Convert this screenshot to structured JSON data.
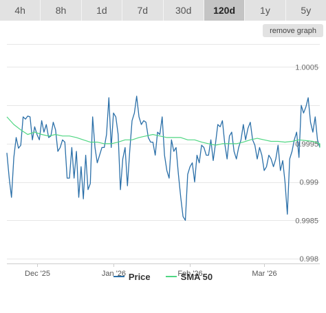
{
  "tabs": [
    {
      "label": "4h",
      "active": false
    },
    {
      "label": "8h",
      "active": false
    },
    {
      "label": "1d",
      "active": false
    },
    {
      "label": "7d",
      "active": false
    },
    {
      "label": "30d",
      "active": false
    },
    {
      "label": "120d",
      "active": true
    },
    {
      "label": "1y",
      "active": false
    },
    {
      "label": "5y",
      "active": false
    }
  ],
  "remove_graph_label": "remove graph",
  "legend": [
    {
      "label": "Price",
      "color": "#2a6fa8"
    },
    {
      "label": "SMA 50",
      "color": "#4fd682"
    }
  ],
  "chart_data": {
    "type": "line",
    "title": "",
    "xlabel": "",
    "ylabel": "",
    "ylim": [
      0.998,
      1.0008
    ],
    "yticks": [
      "0.998",
      "0.9985",
      "0.999",
      "0.9995",
      "1.0005"
    ],
    "xticks": [
      "Dec '25",
      "Jan '26",
      "Feb '26",
      "Mar '26"
    ],
    "grid": true,
    "legend_position": "bottom",
    "series": [
      {
        "name": "Price",
        "color": "#2a6fa8",
        "values": [
          0.99938,
          0.99905,
          0.9988,
          0.99932,
          0.99958,
          0.99944,
          0.99948,
          0.99985,
          0.99982,
          0.99986,
          0.99985,
          0.99955,
          0.99972,
          0.99962,
          0.99955,
          0.9998,
          0.99965,
          0.99975,
          0.99958,
          0.9996,
          0.99978,
          0.99968,
          0.9994,
          0.99945,
          0.99955,
          0.99952,
          0.99905,
          0.99905,
          0.99945,
          0.99905,
          0.9994,
          0.9988,
          0.9992,
          0.99878,
          0.99935,
          0.9989,
          0.99898,
          0.99985,
          0.99945,
          0.99925,
          0.99935,
          0.99945,
          0.99945,
          0.99962,
          1.0001,
          0.99945,
          0.9999,
          0.99985,
          0.99962,
          0.9989,
          0.9993,
          0.99945,
          0.99895,
          0.9994,
          0.9998,
          0.9999,
          1.00012,
          0.99985,
          0.99975,
          0.9998,
          0.99978,
          0.99958,
          0.99952,
          0.99952,
          0.99935,
          0.99965,
          0.99962,
          0.99985,
          0.99935,
          0.99915,
          0.99905,
          0.99955,
          0.9994,
          0.99945,
          0.9991,
          0.9988,
          0.99855,
          0.9985,
          0.9991,
          0.9992,
          0.99925,
          0.999,
          0.99935,
          0.99925,
          0.99948,
          0.99945,
          0.99935,
          0.99935,
          0.99955,
          0.99928,
          0.9995,
          0.99975,
          0.99972,
          0.9998,
          0.9995,
          0.9993,
          0.9996,
          0.99965,
          0.9994,
          0.9993,
          0.99945,
          0.99955,
          0.99975,
          0.99955,
          0.9997,
          0.99978,
          0.99955,
          0.99948,
          0.9993,
          0.99945,
          0.99935,
          0.99915,
          0.9992,
          0.99935,
          0.9993,
          0.9992,
          0.9993,
          0.99948,
          0.99915,
          0.99928,
          0.999,
          0.99858,
          0.9993,
          0.9994,
          0.99955,
          0.99965,
          0.99932,
          1.0,
          0.9999,
          0.99998,
          1.0001,
          0.99978,
          0.99965,
          0.99985,
          0.99955,
          0.99945
        ],
        "x_step": 1
      },
      {
        "name": "SMA 50",
        "color": "#4fd682",
        "values": [
          0.99985,
          0.99975,
          0.99968,
          0.99962,
          0.99965,
          0.99962,
          0.9996,
          0.99962,
          0.9996,
          0.9996,
          0.99958,
          0.99955,
          0.99952,
          0.99952,
          0.9995,
          0.9995,
          0.99952,
          0.99955,
          0.99955,
          0.99958,
          0.9996,
          0.99962,
          0.9996,
          0.99958,
          0.99958,
          0.99958,
          0.99955,
          0.99955,
          0.99952,
          0.9995,
          0.99948,
          0.9995,
          0.9995,
          0.9995,
          0.99952,
          0.99955,
          0.99957,
          0.99955,
          0.99953,
          0.99953,
          0.99952,
          0.99953,
          0.99955,
          0.99954,
          0.99953,
          0.9995,
          0.99948,
          0.99945
        ],
        "x_step": 3
      }
    ]
  }
}
